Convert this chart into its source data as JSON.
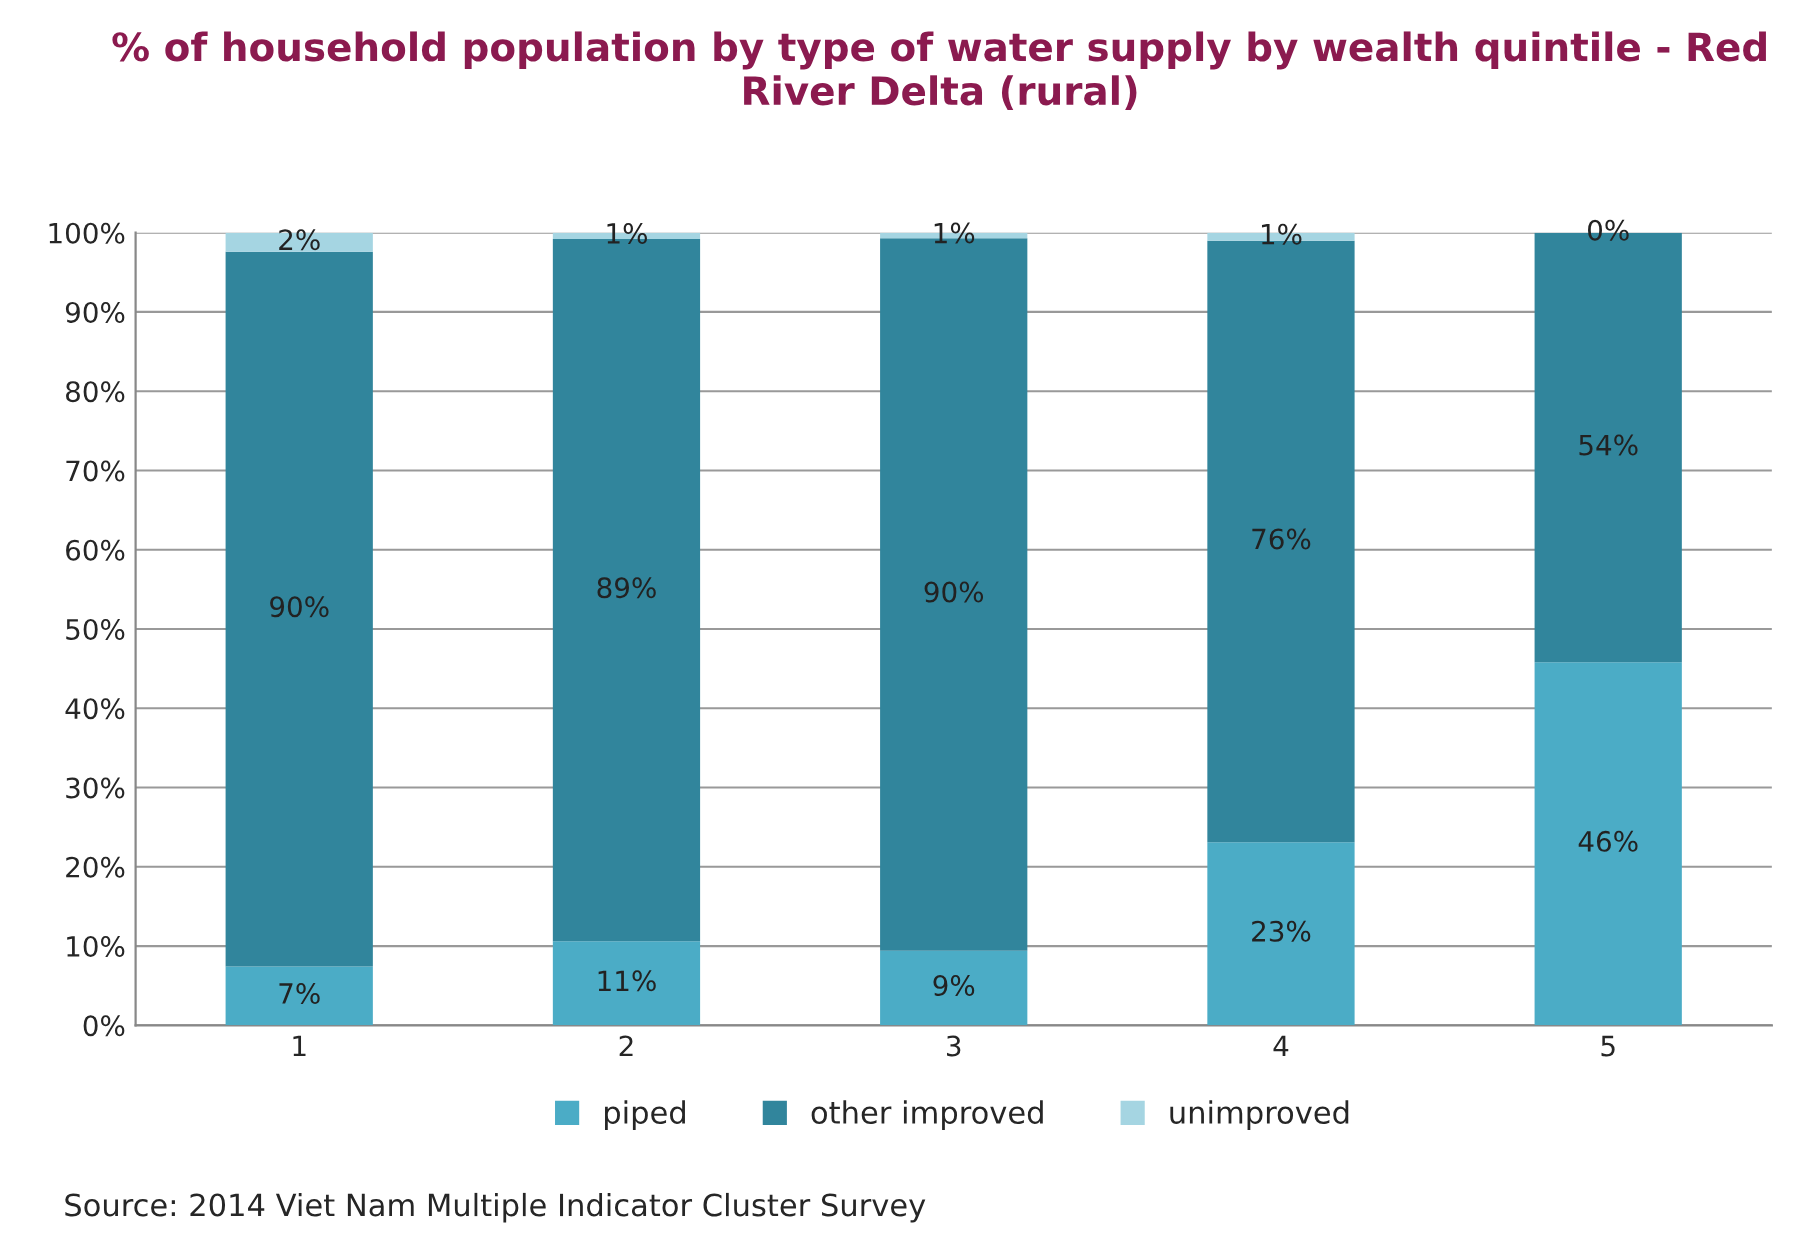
{
  "chart_data": {
    "type": "bar",
    "stacked": true,
    "title": "% of household population by type of water supply by wealth quintile - Red River Delta (rural)",
    "categories": [
      "1",
      "2",
      "3",
      "4",
      "5"
    ],
    "series": [
      {
        "name": "piped",
        "color": "#4bacc6",
        "values": [
          7.4,
          10.6,
          9.4,
          23.1,
          45.8
        ],
        "value_labels": [
          "7%",
          "11%",
          "9%",
          "23%",
          "46%"
        ]
      },
      {
        "name": "other improved",
        "color": "#31859c",
        "values": [
          90.2,
          88.6,
          89.9,
          75.9,
          54.2
        ],
        "value_labels": [
          "90%",
          "89%",
          "90%",
          "76%",
          "54%"
        ]
      },
      {
        "name": "unimproved",
        "color": "#a5d5e2",
        "values": [
          2.4,
          0.8,
          0.7,
          1.0,
          0.0
        ],
        "value_labels": [
          "2%",
          "1%",
          "1%",
          "1%",
          "0%"
        ]
      }
    ],
    "ylim": [
      0,
      100
    ],
    "yticks": [
      {
        "value": 0,
        "label": "0%"
      },
      {
        "value": 10,
        "label": "10%"
      },
      {
        "value": 20,
        "label": "20%"
      },
      {
        "value": 30,
        "label": "30%"
      },
      {
        "value": 40,
        "label": "40%"
      },
      {
        "value": 50,
        "label": "50%"
      },
      {
        "value": 60,
        "label": "60%"
      },
      {
        "value": 70,
        "label": "70%"
      },
      {
        "value": 80,
        "label": "80%"
      },
      {
        "value": 90,
        "label": "90%"
      },
      {
        "value": 100,
        "label": "100%"
      }
    ],
    "grid": "y",
    "legend": "bottom",
    "annotations": [
      "Source: 2014 Viet Nam Multiple Indicator Cluster Survey"
    ]
  }
}
